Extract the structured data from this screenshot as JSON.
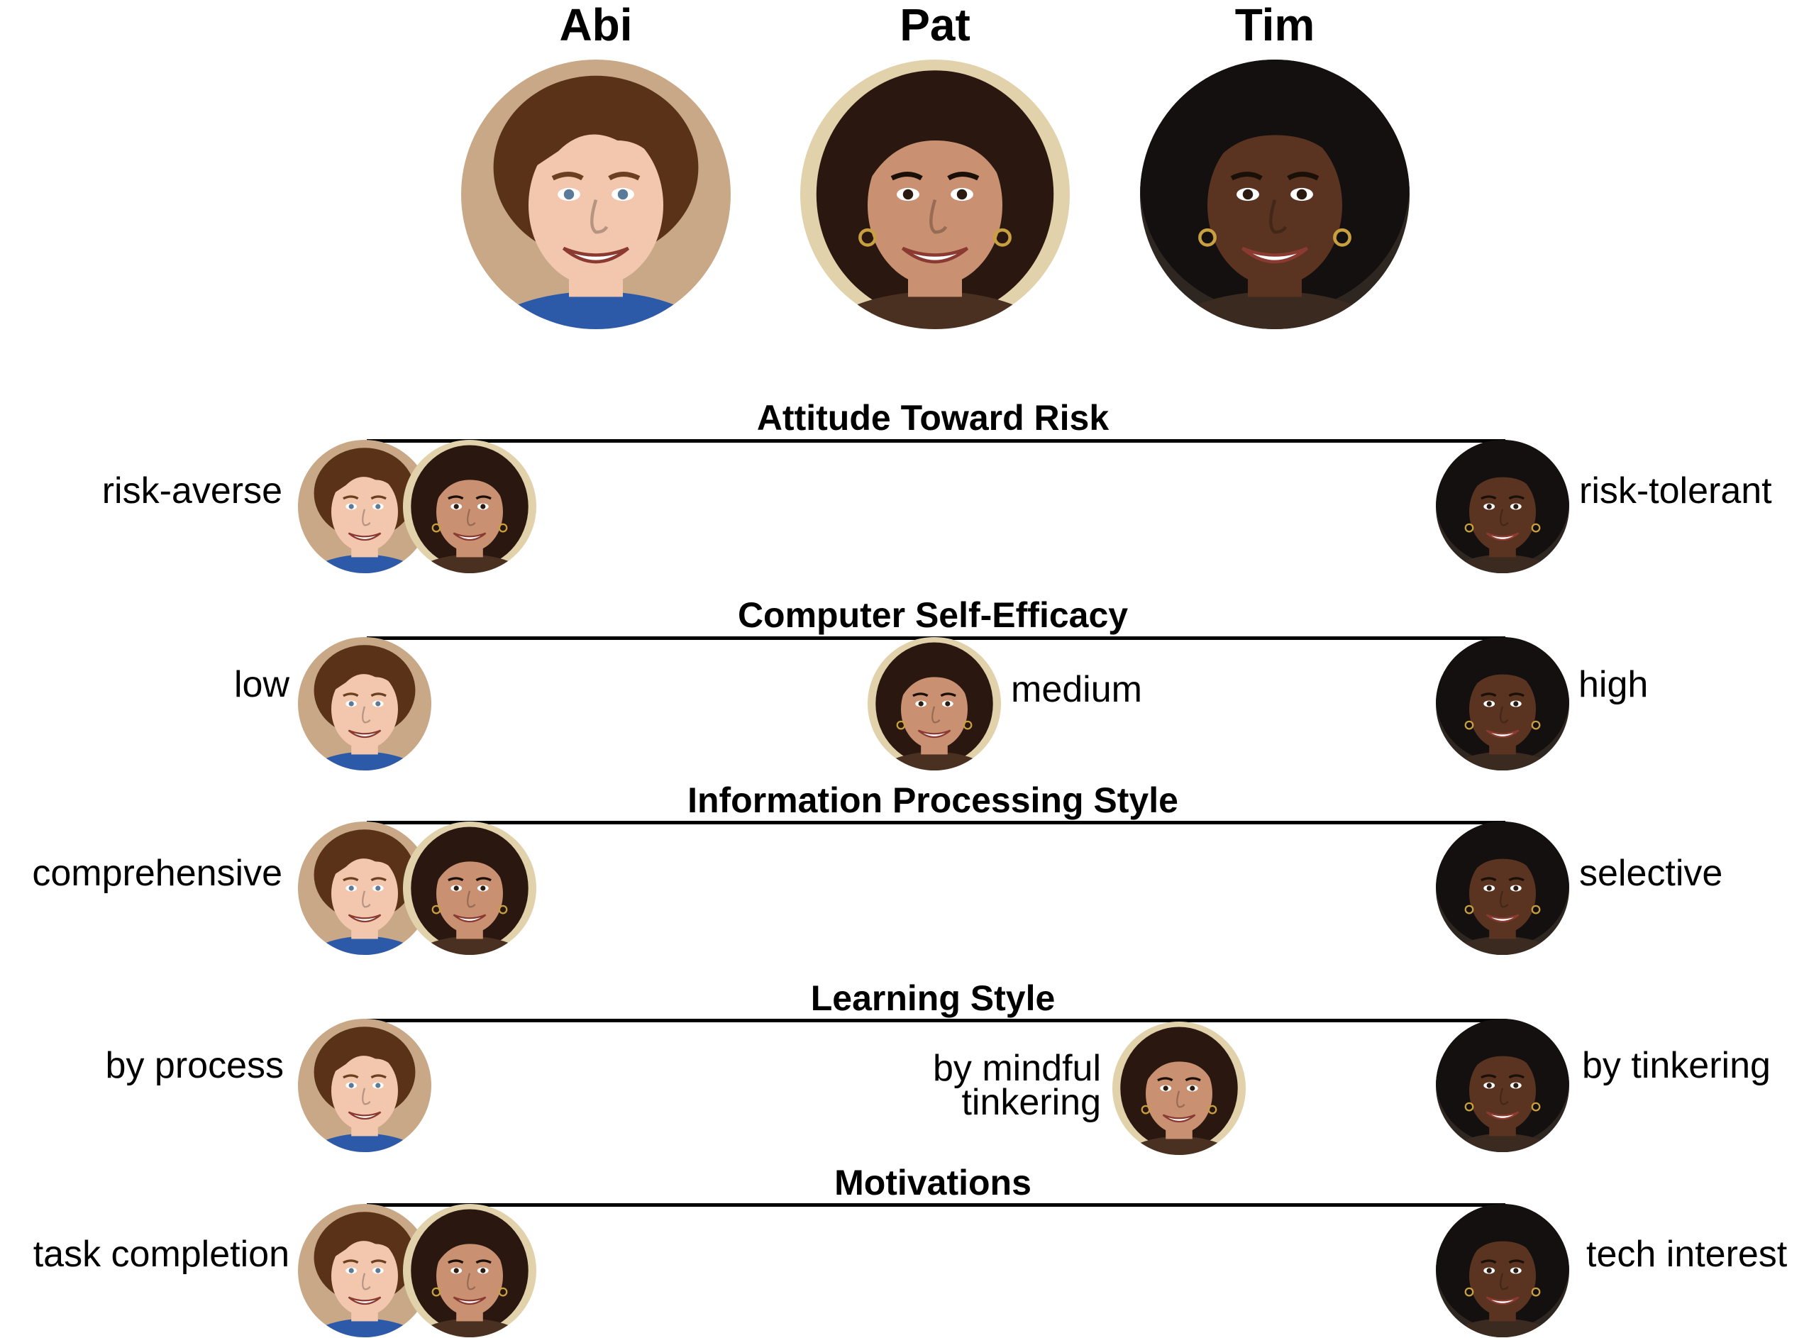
{
  "personas": [
    {
      "name": "Abi",
      "skin": "#f2c7ae",
      "hair": "#5a3218",
      "bg": "#c8a886",
      "shirt": "#2d5aa8",
      "icon": "abi-face-icon"
    },
    {
      "name": "Pat",
      "skin": "#c99072",
      "hair": "#2a1810",
      "bg": "#e2d2ac",
      "shirt": "#4a3020",
      "icon": "pat-face-icon"
    },
    {
      "name": "Tim",
      "skin": "#5a3420",
      "hair": "#141010",
      "bg": "#2e2620",
      "shirt": "#3a2a20",
      "icon": "tim-face-icon"
    }
  ],
  "facets": [
    {
      "title": "Attitude Toward Risk",
      "left_label": "risk-averse",
      "right_label": "risk-tolerant",
      "middle_label": ""
    },
    {
      "title": "Computer Self-Efficacy",
      "left_label": "low",
      "right_label": "high",
      "middle_label": "medium"
    },
    {
      "title": "Information Processing Style",
      "left_label": "comprehensive",
      "right_label": "selective",
      "middle_label": ""
    },
    {
      "title": "Learning Style",
      "left_label": "by process",
      "right_label": "by tinkering",
      "middle_label_line1": "by mindful",
      "middle_label_line2": "tinkering"
    },
    {
      "title": "Motivations",
      "left_label": "task completion",
      "right_label": "tech interest",
      "middle_label": ""
    }
  ]
}
